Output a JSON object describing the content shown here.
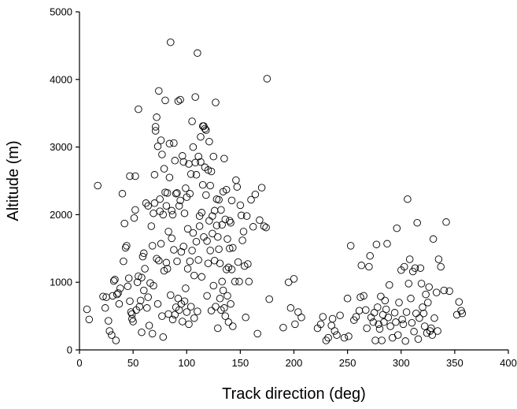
{
  "chart_data": {
    "type": "scatter",
    "title": "",
    "xlabel": "Track direction (deg)",
    "ylabel": "Altitude (m)",
    "xlim": [
      0,
      400
    ],
    "ylim": [
      0,
      5000
    ],
    "xticks": [
      "0",
      "50",
      "100",
      "150",
      "200",
      "250",
      "300",
      "350",
      "400"
    ],
    "yticks": [
      "0",
      "1000",
      "2000",
      "3000",
      "4000",
      "5000"
    ],
    "grid": false,
    "marker": "open-circle",
    "colors": {
      "marker": "#000000",
      "axis": "#000000"
    },
    "series": [
      {
        "points": [
          [
            7,
            600
          ],
          [
            9,
            450
          ],
          [
            17,
            2430
          ],
          [
            22,
            790
          ],
          [
            24,
            620
          ],
          [
            25,
            780
          ],
          [
            27,
            430
          ],
          [
            28,
            280
          ],
          [
            30,
            220
          ],
          [
            31,
            800
          ],
          [
            32,
            1020
          ],
          [
            33,
            1040
          ],
          [
            34,
            140
          ],
          [
            35,
            820
          ],
          [
            36,
            840
          ],
          [
            37,
            680
          ],
          [
            38,
            910
          ],
          [
            40,
            2310
          ],
          [
            41,
            1310
          ],
          [
            42,
            1870
          ],
          [
            43,
            1510
          ],
          [
            44,
            1540
          ],
          [
            45,
            940
          ],
          [
            46,
            1060
          ],
          [
            47,
            720
          ],
          [
            47,
            2570
          ],
          [
            48,
            560
          ],
          [
            49,
            530
          ],
          [
            49,
            460
          ],
          [
            50,
            420
          ],
          [
            51,
            1950
          ],
          [
            52,
            2070
          ],
          [
            52,
            2570
          ],
          [
            53,
            590
          ],
          [
            54,
            1000
          ],
          [
            55,
            3560
          ],
          [
            55,
            1090
          ],
          [
            56,
            640
          ],
          [
            57,
            730
          ],
          [
            58,
            260
          ],
          [
            58,
            1070
          ],
          [
            59,
            1380
          ],
          [
            60,
            1430
          ],
          [
            60,
            880
          ],
          [
            61,
            1200
          ],
          [
            62,
            2170
          ],
          [
            63,
            620
          ],
          [
            64,
            780
          ],
          [
            64,
            2130
          ],
          [
            65,
            360
          ],
          [
            66,
            990
          ],
          [
            67,
            1830
          ],
          [
            68,
            240
          ],
          [
            68,
            1540
          ],
          [
            69,
            950
          ],
          [
            69,
            2020
          ],
          [
            70,
            2170
          ],
          [
            70,
            2590
          ],
          [
            71,
            3300
          ],
          [
            71,
            3240
          ],
          [
            72,
            3440
          ],
          [
            72,
            1350
          ],
          [
            73,
            680
          ],
          [
            73,
            3010
          ],
          [
            74,
            3830
          ],
          [
            74,
            1320
          ],
          [
            75,
            2230
          ],
          [
            75,
            2050
          ],
          [
            76,
            3100
          ],
          [
            76,
            1570
          ],
          [
            77,
            500
          ],
          [
            77,
            2890
          ],
          [
            78,
            190
          ],
          [
            78,
            2000
          ],
          [
            79,
            2680
          ],
          [
            79,
            1170
          ],
          [
            80,
            3690
          ],
          [
            80,
            2330
          ],
          [
            81,
            1290
          ],
          [
            81,
            2130
          ],
          [
            82,
            2320
          ],
          [
            82,
            1200
          ],
          [
            83,
            530
          ],
          [
            83,
            1750
          ],
          [
            84,
            2550
          ],
          [
            84,
            3050
          ],
          [
            85,
            4550
          ],
          [
            85,
            810
          ],
          [
            86,
            1650
          ],
          [
            86,
            2060
          ],
          [
            87,
            2000
          ],
          [
            87,
            450
          ],
          [
            88,
            1480
          ],
          [
            88,
            3060
          ],
          [
            89,
            520
          ],
          [
            89,
            2800
          ],
          [
            90,
            2310
          ],
          [
            90,
            630
          ],
          [
            91,
            1310
          ],
          [
            91,
            2320
          ],
          [
            92,
            3680
          ],
          [
            92,
            760
          ],
          [
            93,
            590
          ],
          [
            93,
            2130
          ],
          [
            94,
            3700
          ],
          [
            94,
            2210
          ],
          [
            95,
            680
          ],
          [
            95,
            1450
          ],
          [
            96,
            2870
          ],
          [
            96,
            420
          ],
          [
            97,
            1530
          ],
          [
            97,
            2780
          ],
          [
            98,
            2020
          ],
          [
            98,
            720
          ],
          [
            99,
            2390
          ],
          [
            99,
            910
          ],
          [
            100,
            2260
          ],
          [
            100,
            560
          ],
          [
            101,
            1790
          ],
          [
            101,
            1200
          ],
          [
            102,
            380
          ],
          [
            102,
            2750
          ],
          [
            103,
            1310
          ],
          [
            103,
            2310
          ],
          [
            104,
            2600
          ],
          [
            104,
            640
          ],
          [
            105,
            3380
          ],
          [
            105,
            1470
          ],
          [
            106,
            3000
          ],
          [
            106,
            1730
          ],
          [
            107,
            1100
          ],
          [
            107,
            470
          ],
          [
            108,
            2770
          ],
          [
            108,
            3740
          ],
          [
            109,
            1600
          ],
          [
            109,
            2590
          ],
          [
            110,
            4390
          ],
          [
            110,
            570
          ],
          [
            111,
            2860
          ],
          [
            111,
            1330
          ],
          [
            112,
            1980
          ],
          [
            112,
            1830
          ],
          [
            113,
            3150
          ],
          [
            113,
            2780
          ],
          [
            114,
            2030
          ],
          [
            114,
            1080
          ],
          [
            115,
            3310
          ],
          [
            115,
            2440
          ],
          [
            116,
            3310
          ],
          [
            116,
            1670
          ],
          [
            117,
            3270
          ],
          [
            117,
            2700
          ],
          [
            118,
            3250
          ],
          [
            118,
            2290
          ],
          [
            119,
            1610
          ],
          [
            119,
            800
          ],
          [
            120,
            2660
          ],
          [
            120,
            1280
          ],
          [
            121,
            1910
          ],
          [
            121,
            3080
          ],
          [
            122,
            2430
          ],
          [
            122,
            1470
          ],
          [
            123,
            2640
          ],
          [
            123,
            580
          ],
          [
            124,
            1980
          ],
          [
            124,
            1720
          ],
          [
            125,
            2860
          ],
          [
            125,
            950
          ],
          [
            126,
            2060
          ],
          [
            126,
            1320
          ],
          [
            127,
            3660
          ],
          [
            127,
            640
          ],
          [
            128,
            2230
          ],
          [
            128,
            1840
          ],
          [
            129,
            1670
          ],
          [
            129,
            320
          ],
          [
            130,
            2220
          ],
          [
            130,
            1490
          ],
          [
            131,
            1280
          ],
          [
            131,
            760
          ],
          [
            132,
            2070
          ],
          [
            132,
            590
          ],
          [
            133,
            1850
          ],
          [
            133,
            1010
          ],
          [
            134,
            2340
          ],
          [
            134,
            880
          ],
          [
            135,
            2830
          ],
          [
            135,
            620
          ],
          [
            136,
            1930
          ],
          [
            136,
            500
          ],
          [
            137,
            2370
          ],
          [
            137,
            1190
          ],
          [
            138,
            1640
          ],
          [
            138,
            800
          ],
          [
            139,
            1220
          ],
          [
            139,
            410
          ],
          [
            140,
            1910
          ],
          [
            140,
            1500
          ],
          [
            141,
            1880
          ],
          [
            141,
            680
          ],
          [
            142,
            2210
          ],
          [
            142,
            1190
          ],
          [
            143,
            1510
          ],
          [
            143,
            350
          ],
          [
            145,
            1010
          ],
          [
            146,
            2510
          ],
          [
            147,
            2410
          ],
          [
            148,
            1300
          ],
          [
            149,
            1010
          ],
          [
            150,
            2140
          ],
          [
            151,
            1990
          ],
          [
            152,
            1620
          ],
          [
            153,
            1750
          ],
          [
            154,
            1240
          ],
          [
            155,
            480
          ],
          [
            156,
            1980
          ],
          [
            157,
            1270
          ],
          [
            158,
            1010
          ],
          [
            160,
            2220
          ],
          [
            162,
            1820
          ],
          [
            164,
            2300
          ],
          [
            166,
            240
          ],
          [
            168,
            1920
          ],
          [
            170,
            2400
          ],
          [
            172,
            1830
          ],
          [
            174,
            1810
          ],
          [
            175,
            4010
          ],
          [
            177,
            750
          ],
          [
            190,
            330
          ],
          [
            195,
            1000
          ],
          [
            197,
            620
          ],
          [
            200,
            1050
          ],
          [
            201,
            380
          ],
          [
            204,
            560
          ],
          [
            207,
            480
          ],
          [
            222,
            320
          ],
          [
            225,
            380
          ],
          [
            227,
            490
          ],
          [
            230,
            140
          ],
          [
            232,
            180
          ],
          [
            235,
            360
          ],
          [
            236,
            460
          ],
          [
            238,
            280
          ],
          [
            240,
            220
          ],
          [
            243,
            510
          ],
          [
            247,
            180
          ],
          [
            250,
            760
          ],
          [
            251,
            200
          ],
          [
            253,
            1540
          ],
          [
            256,
            440
          ],
          [
            258,
            490
          ],
          [
            261,
            580
          ],
          [
            262,
            780
          ],
          [
            263,
            1250
          ],
          [
            265,
            800
          ],
          [
            267,
            590
          ],
          [
            268,
            320
          ],
          [
            270,
            1230
          ],
          [
            271,
            1390
          ],
          [
            272,
            480
          ],
          [
            274,
            410
          ],
          [
            275,
            550
          ],
          [
            276,
            140
          ],
          [
            277,
            1560
          ],
          [
            278,
            630
          ],
          [
            279,
            380
          ],
          [
            280,
            310
          ],
          [
            281,
            790
          ],
          [
            282,
            140
          ],
          [
            283,
            520
          ],
          [
            284,
            410
          ],
          [
            285,
            730
          ],
          [
            286,
            600
          ],
          [
            287,
            1570
          ],
          [
            288,
            480
          ],
          [
            289,
            960
          ],
          [
            290,
            350
          ],
          [
            292,
            180
          ],
          [
            294,
            550
          ],
          [
            295,
            410
          ],
          [
            296,
            1800
          ],
          [
            297,
            220
          ],
          [
            298,
            700
          ],
          [
            300,
            1180
          ],
          [
            301,
            450
          ],
          [
            302,
            380
          ],
          [
            303,
            1230
          ],
          [
            304,
            130
          ],
          [
            305,
            560
          ],
          [
            306,
            2230
          ],
          [
            307,
            980
          ],
          [
            308,
            1340
          ],
          [
            309,
            760
          ],
          [
            310,
            400
          ],
          [
            311,
            1160
          ],
          [
            312,
            270
          ],
          [
            313,
            1210
          ],
          [
            314,
            540
          ],
          [
            315,
            1880
          ],
          [
            316,
            160
          ],
          [
            317,
            470
          ],
          [
            318,
            1210
          ],
          [
            319,
            980
          ],
          [
            320,
            630
          ],
          [
            321,
            540
          ],
          [
            322,
            350
          ],
          [
            323,
            820
          ],
          [
            324,
            250
          ],
          [
            325,
            700
          ],
          [
            326,
            930
          ],
          [
            327,
            280
          ],
          [
            328,
            320
          ],
          [
            329,
            220
          ],
          [
            330,
            1640
          ],
          [
            331,
            470
          ],
          [
            333,
            850
          ],
          [
            334,
            280
          ],
          [
            335,
            1340
          ],
          [
            337,
            1230
          ],
          [
            340,
            880
          ],
          [
            342,
            1890
          ],
          [
            345,
            870
          ],
          [
            352,
            520
          ],
          [
            354,
            710
          ],
          [
            356,
            580
          ],
          [
            357,
            540
          ]
        ]
      }
    ]
  }
}
